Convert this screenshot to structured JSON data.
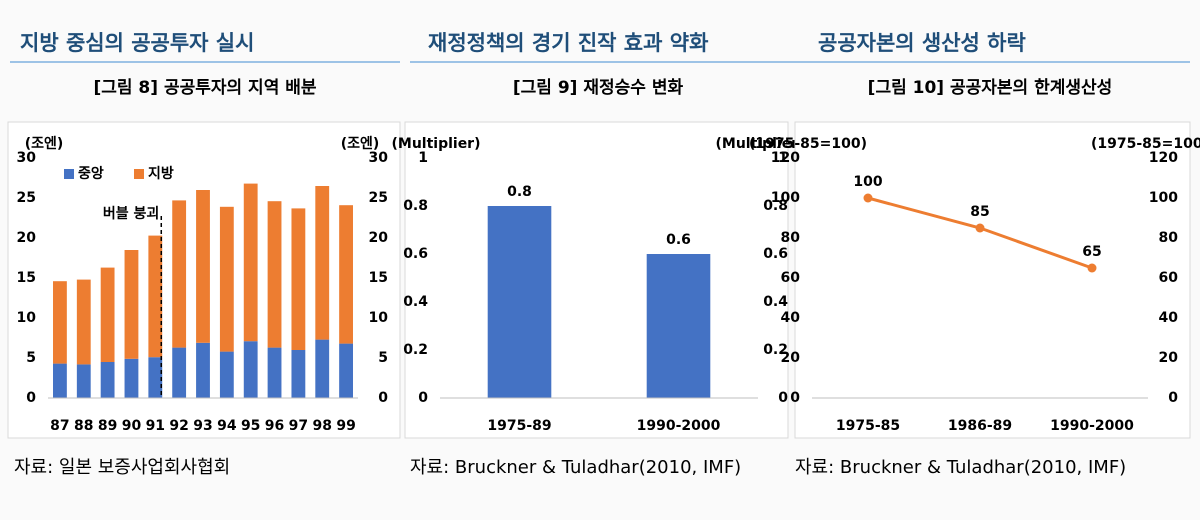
{
  "header": {
    "left": "지방 중심의 공공투자 실시",
    "middle": "재정정책의 경기 진작 효과 약화",
    "right": "공공자본의 생산성 하락"
  },
  "sources": [
    "자료: 일본 보증사업회사협회",
    "자료: Bruckner & Tuladhar(2010, IMF)",
    "자료: Bruckner & Tuladhar(2010, IMF)"
  ],
  "chart_data": [
    {
      "type": "stacked_bar",
      "title": "[그림 8] 공공투자의 지역 배분",
      "y_label": "(조엔)",
      "y2_label": "(조엔)",
      "annotation": "버블 붕괴",
      "legend": "upper left",
      "categories": [
        "87",
        "88",
        "89",
        "90",
        "91",
        "92",
        "93",
        "94",
        "95",
        "96",
        "97",
        "98",
        "99"
      ],
      "series": [
        {
          "name": "중앙",
          "color": "#4472c4",
          "values": [
            4.3,
            4.2,
            4.5,
            4.9,
            5.1,
            6.3,
            6.9,
            5.8,
            7.1,
            6.3,
            6.0,
            7.3,
            6.8
          ]
        },
        {
          "name": "지방",
          "color": "#ed7d31",
          "values": [
            10.3,
            10.6,
            11.8,
            13.6,
            15.2,
            18.4,
            19.1,
            18.1,
            19.7,
            18.3,
            17.7,
            19.2,
            17.3
          ]
        }
      ],
      "ylim": [
        0,
        30
      ],
      "yticks": [
        0,
        5,
        10,
        15,
        20,
        25,
        30
      ],
      "y2lim": [
        0,
        30
      ],
      "y2ticks": [
        0,
        5,
        10,
        15,
        20,
        25,
        30
      ]
    },
    {
      "type": "bar",
      "title": "[그림 9] 재정승수 변화",
      "y_label": "(Multiplier)",
      "y2_label": "(Multiplier)",
      "categories": [
        "1975-89",
        "1990-2000"
      ],
      "series": [
        {
          "color": "#4472c4",
          "values": [
            0.8,
            0.6
          ]
        }
      ],
      "ylim": [
        0,
        1
      ],
      "yticks": [
        0,
        0.2,
        0.4,
        0.6,
        0.8,
        1
      ],
      "y2lim": [
        0,
        1
      ],
      "y2ticks": [
        0,
        0.2,
        0.4,
        0.6,
        0.8,
        1
      ]
    },
    {
      "type": "line",
      "title": "[그림 10] 공공자본의 한계생산성",
      "y_label": "(1975-85=100)",
      "y2_label": "(1975-85=100)",
      "categories": [
        "1975-85",
        "1986-89",
        "1990-2000"
      ],
      "series": [
        {
          "color": "#ed7d31",
          "values": [
            100,
            85,
            65
          ]
        }
      ],
      "ylim": [
        0,
        120
      ],
      "yticks": [
        0,
        20,
        40,
        60,
        80,
        100,
        120
      ],
      "y2lim": [
        0,
        120
      ],
      "y2ticks": [
        0,
        20,
        40,
        60,
        80,
        100,
        120
      ]
    }
  ]
}
